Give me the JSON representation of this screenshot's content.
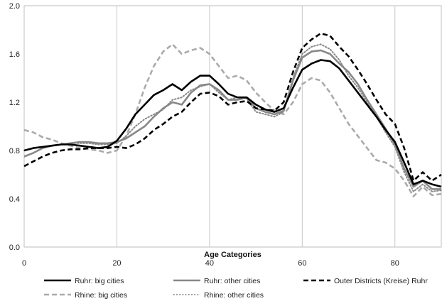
{
  "chart_data": {
    "type": "line",
    "title": "",
    "xlabel": "Age Categories",
    "ylabel": "",
    "xlim": [
      0,
      90
    ],
    "ylim": [
      0,
      2.0
    ],
    "x_ticks": [
      0,
      20,
      40,
      60,
      80
    ],
    "y_ticks": [
      0.0,
      0.4,
      0.8,
      1.2,
      1.6,
      2.0
    ],
    "x_tick_labels": [
      "0",
      "20",
      "40",
      "60",
      "80"
    ],
    "y_tick_labels": [
      "0.0",
      "0.4",
      "0.8",
      "1.2",
      "1.6",
      "2.0"
    ],
    "grid": "vertical",
    "legend_position": "bottom",
    "x": [
      0,
      2,
      4,
      6,
      8,
      10,
      12,
      14,
      16,
      18,
      20,
      22,
      24,
      26,
      28,
      30,
      32,
      34,
      36,
      38,
      40,
      42,
      44,
      46,
      48,
      50,
      52,
      54,
      56,
      58,
      60,
      62,
      64,
      66,
      68,
      70,
      72,
      74,
      76,
      78,
      80,
      82,
      84,
      86,
      88,
      90
    ],
    "series": [
      {
        "name": "Ruhr: big cities",
        "color": "#000000",
        "dash": "solid",
        "values": [
          0.8,
          0.82,
          0.83,
          0.84,
          0.85,
          0.85,
          0.84,
          0.83,
          0.82,
          0.83,
          0.88,
          0.98,
          1.1,
          1.18,
          1.26,
          1.3,
          1.35,
          1.3,
          1.37,
          1.42,
          1.42,
          1.35,
          1.27,
          1.24,
          1.24,
          1.18,
          1.14,
          1.12,
          1.15,
          1.32,
          1.47,
          1.52,
          1.55,
          1.54,
          1.48,
          1.38,
          1.28,
          1.18,
          1.08,
          0.97,
          0.87,
          0.7,
          0.52,
          0.55,
          0.52,
          0.5
        ]
      },
      {
        "name": "Ruhr: other cities",
        "color": "#888888",
        "dash": "solid",
        "values": [
          0.75,
          0.78,
          0.82,
          0.84,
          0.85,
          0.86,
          0.87,
          0.87,
          0.86,
          0.86,
          0.87,
          0.9,
          0.95,
          1.0,
          1.08,
          1.15,
          1.2,
          1.18,
          1.28,
          1.34,
          1.35,
          1.3,
          1.22,
          1.22,
          1.24,
          1.15,
          1.12,
          1.1,
          1.13,
          1.38,
          1.57,
          1.62,
          1.63,
          1.6,
          1.52,
          1.45,
          1.35,
          1.22,
          1.1,
          0.98,
          0.85,
          0.65,
          0.5,
          0.55,
          0.48,
          0.48
        ]
      },
      {
        "name": "Outer Districts (Kreise) Ruhr",
        "color": "#000000",
        "dash": "dashed",
        "values": [
          0.67,
          0.71,
          0.75,
          0.78,
          0.8,
          0.81,
          0.81,
          0.82,
          0.82,
          0.82,
          0.83,
          0.82,
          0.85,
          0.9,
          0.97,
          1.02,
          1.08,
          1.12,
          1.2,
          1.27,
          1.28,
          1.25,
          1.18,
          1.2,
          1.21,
          1.15,
          1.14,
          1.13,
          1.2,
          1.45,
          1.65,
          1.72,
          1.77,
          1.75,
          1.66,
          1.58,
          1.47,
          1.35,
          1.22,
          1.1,
          1.02,
          0.82,
          0.55,
          0.62,
          0.55,
          0.6
        ]
      },
      {
        "name": "Rhine: big cities",
        "color": "#aaaaaa",
        "dash": "dashed",
        "values": [
          0.97,
          0.95,
          0.91,
          0.89,
          0.86,
          0.84,
          0.82,
          0.81,
          0.8,
          0.78,
          0.8,
          0.92,
          1.1,
          1.32,
          1.5,
          1.62,
          1.68,
          1.6,
          1.63,
          1.65,
          1.6,
          1.5,
          1.4,
          1.42,
          1.38,
          1.28,
          1.2,
          1.13,
          1.1,
          1.2,
          1.35,
          1.4,
          1.38,
          1.28,
          1.15,
          1.02,
          0.92,
          0.82,
          0.72,
          0.7,
          0.65,
          0.55,
          0.42,
          0.5,
          0.43,
          0.44
        ]
      },
      {
        "name": "Rhine: other cities",
        "color": "#888888",
        "dash": "dotted",
        "values": [
          0.8,
          0.82,
          0.83,
          0.84,
          0.85,
          0.86,
          0.86,
          0.86,
          0.85,
          0.85,
          0.86,
          0.92,
          1.0,
          1.06,
          1.1,
          1.14,
          1.22,
          1.24,
          1.3,
          1.33,
          1.35,
          1.28,
          1.22,
          1.24,
          1.23,
          1.12,
          1.1,
          1.08,
          1.12,
          1.4,
          1.6,
          1.66,
          1.68,
          1.64,
          1.55,
          1.42,
          1.32,
          1.2,
          1.08,
          0.95,
          0.83,
          0.62,
          0.46,
          0.52,
          0.46,
          0.47
        ]
      }
    ]
  }
}
